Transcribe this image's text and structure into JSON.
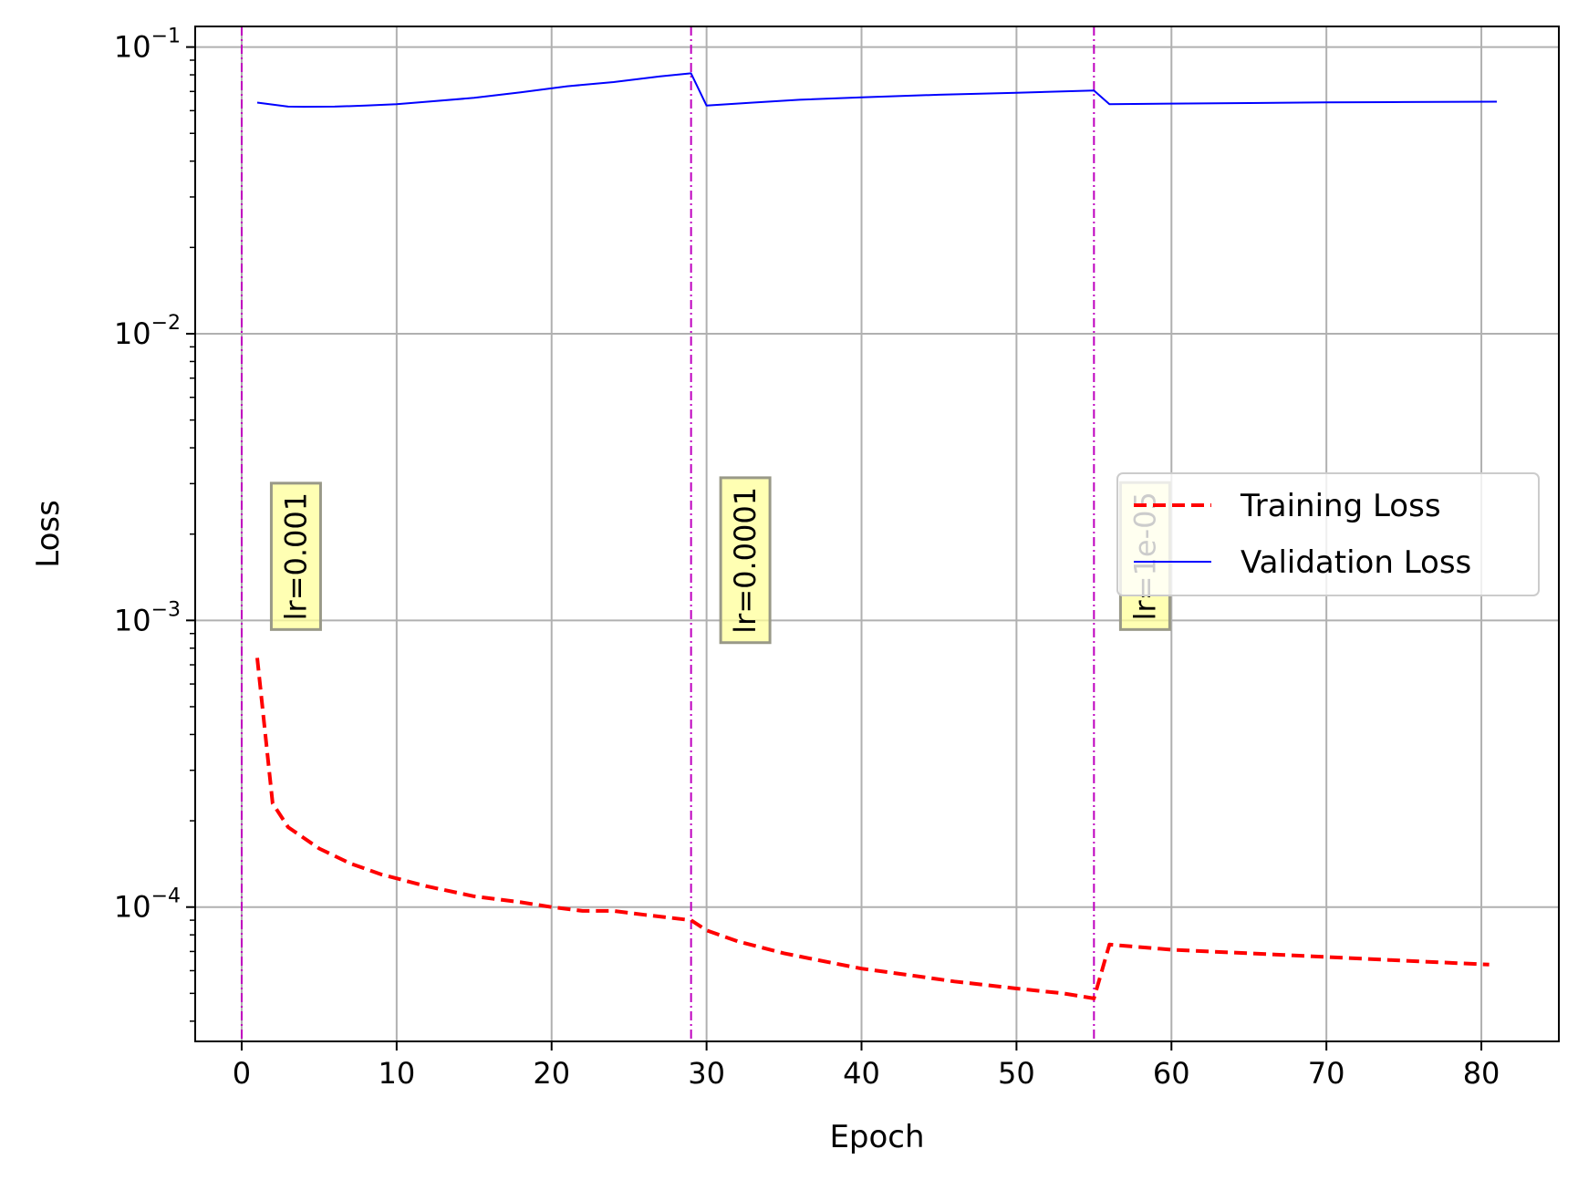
{
  "chart_data": {
    "type": "line",
    "xlabel": "Epoch",
    "ylabel": "Loss",
    "xlim": [
      -3,
      85
    ],
    "ylim": [
      3.4e-05,
      0.118
    ],
    "yscale": "log",
    "grid": true,
    "legend_position": "center-right",
    "x_ticks": [
      0,
      10,
      20,
      30,
      40,
      50,
      60,
      70,
      80
    ],
    "y_ticks": [
      {
        "value": 0.0001,
        "base": "10",
        "exp": "−4"
      },
      {
        "value": 0.001,
        "base": "10",
        "exp": "−3"
      },
      {
        "value": 0.01,
        "base": "10",
        "exp": "−2"
      },
      {
        "value": 0.1,
        "base": "10",
        "exp": "−1"
      }
    ],
    "series": [
      {
        "name": "Training Loss",
        "color": "#ff0000",
        "style": "dashed",
        "x": [
          1,
          2,
          3,
          5,
          7,
          9,
          12,
          15,
          18,
          20,
          22,
          24,
          26,
          29,
          30,
          32,
          35,
          38,
          40,
          43,
          46,
          50,
          53,
          55,
          56,
          60,
          65,
          70,
          75,
          80.5
        ],
        "y": [
          0.00074,
          0.00023,
          0.00019,
          0.00016,
          0.000142,
          0.00013,
          0.000118,
          0.000109,
          0.000104,
          0.0001,
          9.7e-05,
          9.7e-05,
          9.4e-05,
          9e-05,
          8.3e-05,
          7.6e-05,
          6.9e-05,
          6.4e-05,
          6.1e-05,
          5.8e-05,
          5.5e-05,
          5.2e-05,
          5e-05,
          4.8e-05,
          7.4e-05,
          7.1e-05,
          6.9e-05,
          6.7e-05,
          6.5e-05,
          6.3e-05
        ]
      },
      {
        "name": "Validation Loss",
        "color": "#0000ff",
        "style": "solid",
        "x": [
          1,
          3,
          4,
          6,
          8,
          10,
          12,
          15,
          18,
          21,
          24,
          27,
          29,
          30,
          33,
          36,
          40,
          45,
          50,
          55,
          56,
          60,
          65,
          70,
          75,
          81
        ],
        "y": [
          0.064,
          0.062,
          0.0619,
          0.062,
          0.0625,
          0.0632,
          0.0645,
          0.0665,
          0.0695,
          0.073,
          0.0755,
          0.079,
          0.081,
          0.0625,
          0.064,
          0.0655,
          0.0668,
          0.0682,
          0.0693,
          0.0705,
          0.0632,
          0.0635,
          0.0638,
          0.0641,
          0.0643,
          0.0645
        ]
      }
    ],
    "vlines": [
      {
        "x": 0,
        "color": "#bf00bf"
      },
      {
        "x": 29,
        "color": "#bf00bf"
      },
      {
        "x": 55,
        "color": "#bf00bf"
      }
    ],
    "annotations": [
      {
        "x": 3.5,
        "y_bottom": 0.001,
        "text": "lr=0.001"
      },
      {
        "x": 32.5,
        "y_bottom": 0.0009,
        "text": "lr=0.0001"
      },
      {
        "x": 58.3,
        "y_bottom": 0.001,
        "text": "lr=1e-05"
      }
    ]
  }
}
